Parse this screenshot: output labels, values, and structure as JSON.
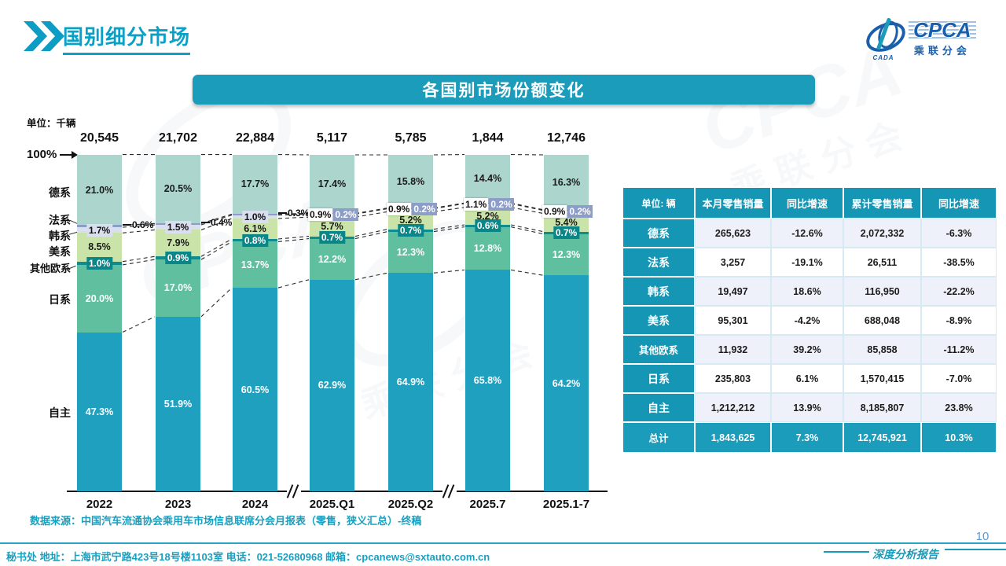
{
  "slide": {
    "title": "国别细分市场",
    "banner": "各国别市场份额变化",
    "axis_100_label": "100%",
    "source": "数据来源：中国汽车流通协会乘用车市场信息联席分会月报表（零售，狭义汇总）-终稿",
    "footer_contact": "秘书处  地址：上海市武宁路423号18号楼1103室  电话：021-52680968   邮箱：cpcanews@sxtauto.com.cn",
    "page_number": "10",
    "report_label": "深度分析报告"
  },
  "logo": {
    "acronym": "CPCA",
    "subtitle": "乘联分会",
    "emblem_text": "CADA"
  },
  "colors": {
    "accent_teal": "#1a9cba",
    "table_header_teal": "#1596b4",
    "title_text": "#0ba0c6",
    "footer_text": "#19a0c0",
    "page_number": "#5b9bd5"
  },
  "chart_data": {
    "type": "bar",
    "subtype": "stacked-100-percent",
    "title": "各国别市场份额变化",
    "unit_label": "单位：千辆",
    "grid": false,
    "legend_position": "left-axis-labels",
    "y_max_label": "100%",
    "categories": [
      "2022",
      "2023",
      "2024",
      "2025.Q1",
      "2025.Q2",
      "2025.7",
      "2025.1-7"
    ],
    "totals_thousands": [
      "20,545",
      "21,702",
      "22,884",
      "5,117",
      "5,785",
      "1,844",
      "12,746"
    ],
    "axis_break_after_categories": [
      "2024",
      "2025.Q2"
    ],
    "series": [
      {
        "key": "domestic",
        "name": "自主",
        "color": "#20a0bf",
        "values": [
          47.3,
          51.9,
          60.5,
          62.9,
          64.9,
          65.8,
          64.2
        ]
      },
      {
        "key": "japan",
        "name": "日系",
        "color": "#5fbf9e",
        "values": [
          20.0,
          17.0,
          13.7,
          12.2,
          12.3,
          12.8,
          12.3
        ]
      },
      {
        "key": "other-europe",
        "name": "其他欧系",
        "color": "#0d8d8f",
        "values": [
          1.0,
          0.9,
          0.8,
          0.7,
          0.7,
          0.6,
          0.7
        ]
      },
      {
        "key": "usa",
        "name": "美系",
        "color": "#c9e3a8",
        "values": [
          8.5,
          7.9,
          6.1,
          5.7,
          5.2,
          5.2,
          5.4
        ]
      },
      {
        "key": "korea",
        "name": "韩系",
        "color": "#dadff0",
        "values": [
          1.7,
          1.5,
          1.0,
          0.9,
          0.9,
          1.1,
          0.9
        ]
      },
      {
        "key": "france",
        "name": "法系",
        "color": "#8c9dc8",
        "values": [
          0.6,
          0.4,
          0.3,
          0.2,
          0.2,
          0.2,
          0.2
        ]
      },
      {
        "key": "germany",
        "name": "德系",
        "color": "#acd5ce",
        "values": [
          21.0,
          20.5,
          17.7,
          17.4,
          15.8,
          14.4,
          16.3
        ]
      }
    ]
  },
  "table": {
    "header": [
      "单位: 辆",
      "本月零售销量",
      "同比增速",
      "累计零售销量",
      "同比增速"
    ],
    "rows": [
      {
        "key": "germany",
        "label": "德系",
        "cells": [
          "265,623",
          "-12.6%",
          "2,072,332",
          "-6.3%"
        ]
      },
      {
        "key": "france",
        "label": "法系",
        "cells": [
          "3,257",
          "-19.1%",
          "26,511",
          "-38.5%"
        ]
      },
      {
        "key": "korea",
        "label": "韩系",
        "cells": [
          "19,497",
          "18.6%",
          "116,950",
          "-22.2%"
        ]
      },
      {
        "key": "usa",
        "label": "美系",
        "cells": [
          "95,301",
          "-4.2%",
          "688,048",
          "-8.9%"
        ]
      },
      {
        "key": "other-europe",
        "label": "其他欧系",
        "cells": [
          "11,932",
          "39.2%",
          "85,858",
          "-11.2%"
        ]
      },
      {
        "key": "japan",
        "label": "日系",
        "cells": [
          "235,803",
          "6.1%",
          "1,570,415",
          "-7.0%"
        ]
      },
      {
        "key": "domestic",
        "label": "自主",
        "cells": [
          "1,212,212",
          "13.9%",
          "8,185,807",
          "23.8%"
        ]
      }
    ],
    "total_row": {
      "key": "total",
      "label": "总计",
      "cells": [
        "1,843,625",
        "7.3%",
        "12,745,921",
        "10.3%"
      ]
    }
  }
}
